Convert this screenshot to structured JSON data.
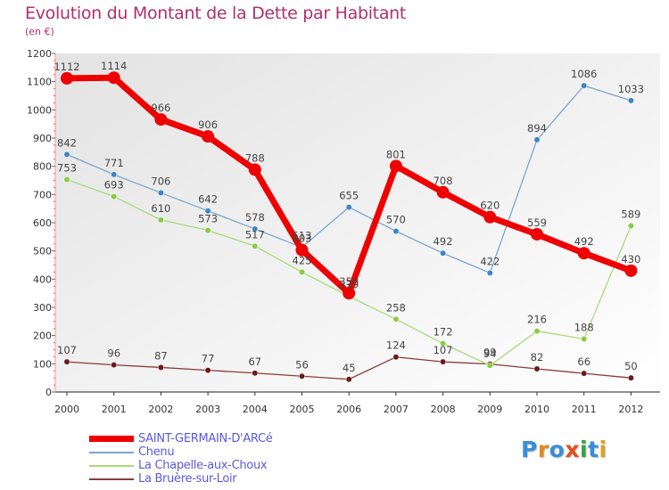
{
  "header": {
    "title": "Evolution du Montant de la Dette par Habitant",
    "subtitle": "(en €)"
  },
  "logo": {
    "text": "Proxiti",
    "colors": [
      "#3a8ed8",
      "#e08a20",
      "#3a8ed8",
      "#e05020",
      "#3aa040",
      "#3a8ed8",
      "#e0a020"
    ]
  },
  "chart_data": {
    "type": "line",
    "title": "Evolution du Montant de la Dette par Habitant",
    "subtitle": "(en €)",
    "x": [
      2000,
      2001,
      2002,
      2003,
      2004,
      2005,
      2006,
      2007,
      2008,
      2009,
      2010,
      2011,
      2012
    ],
    "ylim": [
      0,
      1200
    ],
    "yticks": [
      0,
      100,
      200,
      300,
      400,
      500,
      600,
      700,
      800,
      900,
      1000,
      1100,
      1200
    ],
    "grid": false,
    "legend_position": "bottom-left",
    "series": [
      {
        "name": "SAINT-GERMAIN-D'ARCé",
        "color": "#ee0000",
        "emphasis": true,
        "values": [
          1112,
          1114,
          966,
          906,
          788,
          503,
          350,
          801,
          708,
          620,
          559,
          492,
          430
        ]
      },
      {
        "name": "Chenu",
        "color": "#7aa6d0",
        "marker": "#3c84c4",
        "values": [
          842,
          771,
          706,
          642,
          578,
          513,
          655,
          570,
          492,
          422,
          894,
          1086,
          1033
        ]
      },
      {
        "name": "La Chapelle-aux-Choux",
        "color": "#a8dc78",
        "marker": "#88cc44",
        "values": [
          753,
          693,
          610,
          573,
          517,
          425,
          339,
          258,
          172,
          94,
          216,
          188,
          589
        ]
      },
      {
        "name": "La Bruère-sur-Loir",
        "color": "#8b3a3a",
        "marker": "#6a1a1a",
        "values": [
          107,
          96,
          87,
          77,
          67,
          56,
          45,
          124,
          107,
          99,
          82,
          66,
          50
        ]
      }
    ]
  }
}
